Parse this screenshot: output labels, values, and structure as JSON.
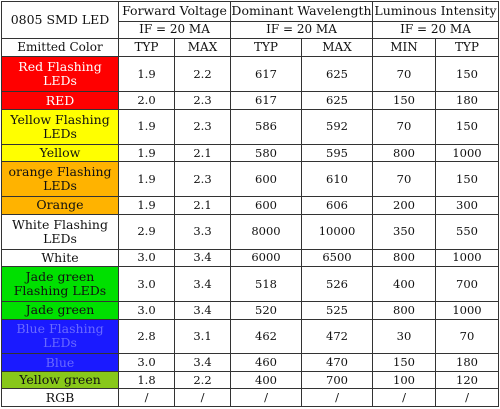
{
  "header": {
    "corner": "0805 SMD LED",
    "groups": [
      {
        "title": "Forward Voltage",
        "condition": "IF = 20 MA"
      },
      {
        "title": "Dominant Wavelength",
        "condition": "IF = 20 MA"
      },
      {
        "title": "Luminous Intensity",
        "condition": "IF = 20 MA"
      }
    ],
    "first_col": "Emitted Color",
    "cols": [
      "TYP",
      "MAX",
      "TYP",
      "MAX",
      "MIN",
      "TYP"
    ]
  },
  "rows": [
    {
      "name": "Red Flashing LEDs",
      "bg": "#ff0000",
      "fg": "#ffffff",
      "values": [
        "1.9",
        "2.2",
        "617",
        "625",
        "70",
        "150"
      ]
    },
    {
      "name": "RED",
      "bg": "#ff0000",
      "fg": "#ffffff",
      "values": [
        "2.0",
        "2.3",
        "617",
        "625",
        "150",
        "180"
      ]
    },
    {
      "name": "Yellow Flashing LEDs",
      "bg": "#ffff00",
      "fg": "#111111",
      "values": [
        "1.9",
        "2.3",
        "586",
        "592",
        "70",
        "150"
      ]
    },
    {
      "name": "Yellow",
      "bg": "#ffff00",
      "fg": "#111111",
      "values": [
        "1.9",
        "2.1",
        "580",
        "595",
        "800",
        "1000"
      ]
    },
    {
      "name": "orange Flashing LEDs",
      "bg": "#ffb300",
      "fg": "#111111",
      "values": [
        "1.9",
        "2.3",
        "600",
        "610",
        "70",
        "150"
      ]
    },
    {
      "name": "Orange",
      "bg": "#ffb300",
      "fg": "#111111",
      "values": [
        "1.9",
        "2.1",
        "600",
        "606",
        "200",
        "300"
      ]
    },
    {
      "name": "White Flashing LEDs",
      "bg": "#ffffff",
      "fg": "#111111",
      "values": [
        "2.9",
        "3.3",
        "8000",
        "10000",
        "350",
        "550"
      ]
    },
    {
      "name": "White",
      "bg": "#ffffff",
      "fg": "#111111",
      "values": [
        "3.0",
        "3.4",
        "6000",
        "6500",
        "800",
        "1000"
      ]
    },
    {
      "name": "Jade green Flashing LEDs",
      "bg": "#00e000",
      "fg": "#111111",
      "values": [
        "3.0",
        "3.4",
        "518",
        "526",
        "400",
        "700"
      ]
    },
    {
      "name": "Jade green",
      "bg": "#00e000",
      "fg": "#111111",
      "values": [
        "3.0",
        "3.4",
        "520",
        "525",
        "800",
        "1000"
      ]
    },
    {
      "name": "Blue Flashing LEDs",
      "bg": "#1a1aff",
      "fg": "#6a6aff",
      "values": [
        "2.8",
        "3.1",
        "462",
        "472",
        "30",
        "70"
      ]
    },
    {
      "name": "Blue",
      "bg": "#1a1aff",
      "fg": "#6a6aff",
      "values": [
        "3.0",
        "3.4",
        "460",
        "470",
        "150",
        "180"
      ]
    },
    {
      "name": "Yellow green",
      "bg": "#88c81a",
      "fg": "#111111",
      "values": [
        "1.8",
        "2.2",
        "400",
        "700",
        "100",
        "120"
      ]
    },
    {
      "name": "RGB",
      "bg": "#ffffff",
      "fg": "#111111",
      "values": [
        "/",
        "/",
        "/",
        "/",
        "/",
        "/"
      ]
    }
  ],
  "row_heights": [
    "r1",
    "r1s",
    "r1",
    "r1s",
    "r1",
    "r1s",
    "r1",
    "r1s",
    "r1",
    "r1s",
    "r1",
    "r1s",
    "r1s",
    "r1s"
  ]
}
